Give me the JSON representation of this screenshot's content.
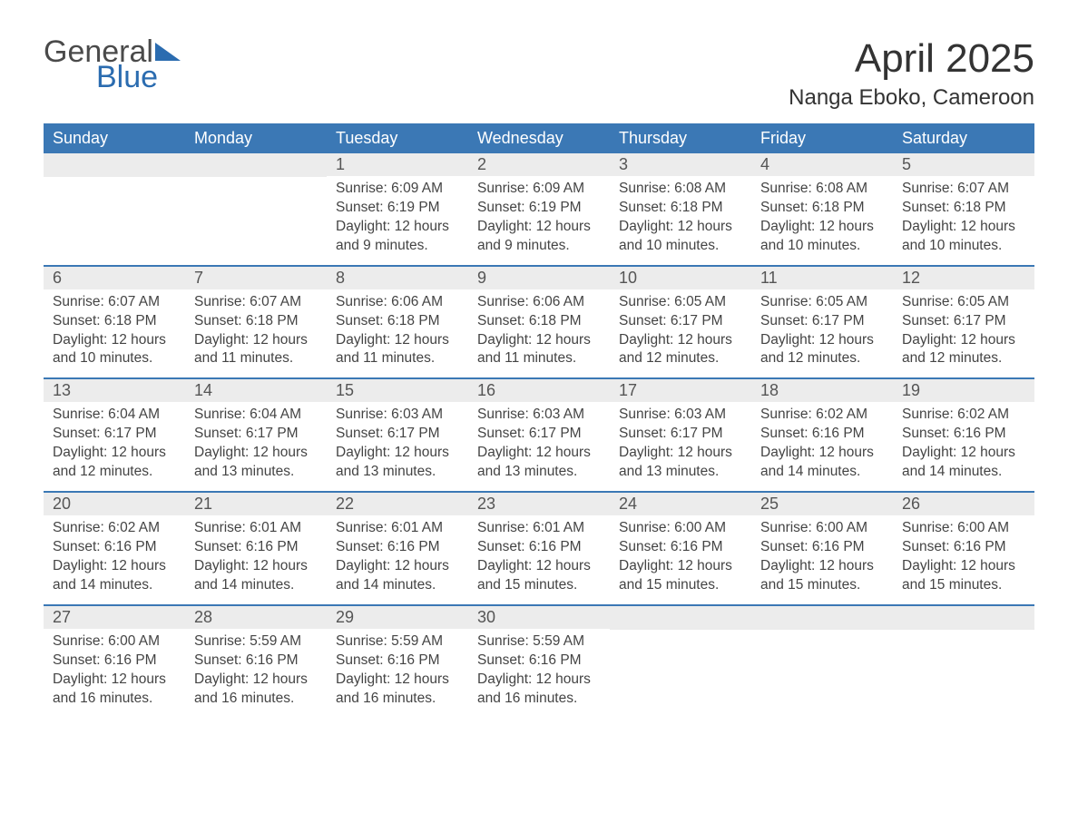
{
  "logo": {
    "word1": "General",
    "word2": "Blue",
    "tri_color": "#2b6cb0"
  },
  "title": "April 2025",
  "location": "Nanga Eboko, Cameroon",
  "colors": {
    "header_bg": "#3b78b5",
    "header_text": "#ffffff",
    "daynum_bg": "#ececec",
    "week_divider": "#3b78b5",
    "body_text": "#444444",
    "page_bg": "#ffffff"
  },
  "day_names": [
    "Sunday",
    "Monday",
    "Tuesday",
    "Wednesday",
    "Thursday",
    "Friday",
    "Saturday"
  ],
  "sunrise_label": "Sunrise: ",
  "sunset_label": "Sunset: ",
  "daylight_label": "Daylight: ",
  "weeks": [
    [
      null,
      null,
      {
        "n": "1",
        "sunrise": "6:09 AM",
        "sunset": "6:19 PM",
        "daylight": "12 hours and 9 minutes."
      },
      {
        "n": "2",
        "sunrise": "6:09 AM",
        "sunset": "6:19 PM",
        "daylight": "12 hours and 9 minutes."
      },
      {
        "n": "3",
        "sunrise": "6:08 AM",
        "sunset": "6:18 PM",
        "daylight": "12 hours and 10 minutes."
      },
      {
        "n": "4",
        "sunrise": "6:08 AM",
        "sunset": "6:18 PM",
        "daylight": "12 hours and 10 minutes."
      },
      {
        "n": "5",
        "sunrise": "6:07 AM",
        "sunset": "6:18 PM",
        "daylight": "12 hours and 10 minutes."
      }
    ],
    [
      {
        "n": "6",
        "sunrise": "6:07 AM",
        "sunset": "6:18 PM",
        "daylight": "12 hours and 10 minutes."
      },
      {
        "n": "7",
        "sunrise": "6:07 AM",
        "sunset": "6:18 PM",
        "daylight": "12 hours and 11 minutes."
      },
      {
        "n": "8",
        "sunrise": "6:06 AM",
        "sunset": "6:18 PM",
        "daylight": "12 hours and 11 minutes."
      },
      {
        "n": "9",
        "sunrise": "6:06 AM",
        "sunset": "6:18 PM",
        "daylight": "12 hours and 11 minutes."
      },
      {
        "n": "10",
        "sunrise": "6:05 AM",
        "sunset": "6:17 PM",
        "daylight": "12 hours and 12 minutes."
      },
      {
        "n": "11",
        "sunrise": "6:05 AM",
        "sunset": "6:17 PM",
        "daylight": "12 hours and 12 minutes."
      },
      {
        "n": "12",
        "sunrise": "6:05 AM",
        "sunset": "6:17 PM",
        "daylight": "12 hours and 12 minutes."
      }
    ],
    [
      {
        "n": "13",
        "sunrise": "6:04 AM",
        "sunset": "6:17 PM",
        "daylight": "12 hours and 12 minutes."
      },
      {
        "n": "14",
        "sunrise": "6:04 AM",
        "sunset": "6:17 PM",
        "daylight": "12 hours and 13 minutes."
      },
      {
        "n": "15",
        "sunrise": "6:03 AM",
        "sunset": "6:17 PM",
        "daylight": "12 hours and 13 minutes."
      },
      {
        "n": "16",
        "sunrise": "6:03 AM",
        "sunset": "6:17 PM",
        "daylight": "12 hours and 13 minutes."
      },
      {
        "n": "17",
        "sunrise": "6:03 AM",
        "sunset": "6:17 PM",
        "daylight": "12 hours and 13 minutes."
      },
      {
        "n": "18",
        "sunrise": "6:02 AM",
        "sunset": "6:16 PM",
        "daylight": "12 hours and 14 minutes."
      },
      {
        "n": "19",
        "sunrise": "6:02 AM",
        "sunset": "6:16 PM",
        "daylight": "12 hours and 14 minutes."
      }
    ],
    [
      {
        "n": "20",
        "sunrise": "6:02 AM",
        "sunset": "6:16 PM",
        "daylight": "12 hours and 14 minutes."
      },
      {
        "n": "21",
        "sunrise": "6:01 AM",
        "sunset": "6:16 PM",
        "daylight": "12 hours and 14 minutes."
      },
      {
        "n": "22",
        "sunrise": "6:01 AM",
        "sunset": "6:16 PM",
        "daylight": "12 hours and 14 minutes."
      },
      {
        "n": "23",
        "sunrise": "6:01 AM",
        "sunset": "6:16 PM",
        "daylight": "12 hours and 15 minutes."
      },
      {
        "n": "24",
        "sunrise": "6:00 AM",
        "sunset": "6:16 PM",
        "daylight": "12 hours and 15 minutes."
      },
      {
        "n": "25",
        "sunrise": "6:00 AM",
        "sunset": "6:16 PM",
        "daylight": "12 hours and 15 minutes."
      },
      {
        "n": "26",
        "sunrise": "6:00 AM",
        "sunset": "6:16 PM",
        "daylight": "12 hours and 15 minutes."
      }
    ],
    [
      {
        "n": "27",
        "sunrise": "6:00 AM",
        "sunset": "6:16 PM",
        "daylight": "12 hours and 16 minutes."
      },
      {
        "n": "28",
        "sunrise": "5:59 AM",
        "sunset": "6:16 PM",
        "daylight": "12 hours and 16 minutes."
      },
      {
        "n": "29",
        "sunrise": "5:59 AM",
        "sunset": "6:16 PM",
        "daylight": "12 hours and 16 minutes."
      },
      {
        "n": "30",
        "sunrise": "5:59 AM",
        "sunset": "6:16 PM",
        "daylight": "12 hours and 16 minutes."
      },
      null,
      null,
      null
    ]
  ]
}
